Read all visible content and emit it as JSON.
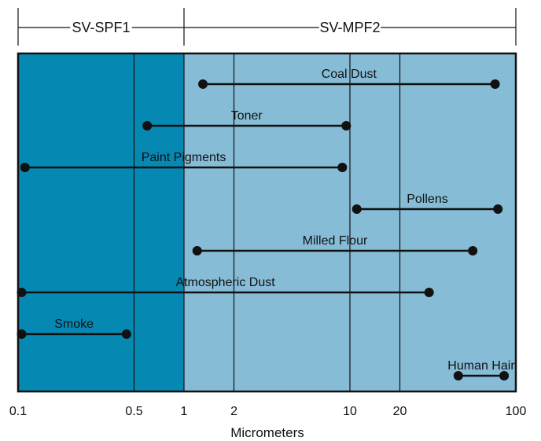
{
  "chart_data": {
    "type": "range",
    "xlabel": "Micrometers",
    "x_scale": "log",
    "xlim": [
      0.1,
      100
    ],
    "x_ticks": [
      {
        "value": 0.1,
        "label": "0.1"
      },
      {
        "value": 0.5,
        "label": "0.5"
      },
      {
        "value": 1,
        "label": "1"
      },
      {
        "value": 2,
        "label": "2"
      },
      {
        "value": 10,
        "label": "10"
      },
      {
        "value": 20,
        "label": "20"
      },
      {
        "value": 100,
        "label": "100"
      }
    ],
    "gridlines": [
      0.5,
      1,
      2,
      10,
      20
    ],
    "regions": [
      {
        "from": 0.1,
        "to": 1,
        "color": "#0589b3"
      },
      {
        "from": 1,
        "to": 100,
        "color": "#86bcd6"
      }
    ],
    "filter_ranges": [
      {
        "name": "SV-SPF1",
        "from": 0.1,
        "to": 1
      },
      {
        "name": "SV-MPF2",
        "from": 1,
        "to": 100
      }
    ],
    "series": [
      {
        "name": "Coal Dust",
        "min": 1.3,
        "max": 75
      },
      {
        "name": "Toner",
        "min": 0.6,
        "max": 9.5
      },
      {
        "name": "Paint Pigments",
        "min": 0.11,
        "max": 9.0
      },
      {
        "name": "Pollens",
        "min": 11,
        "max": 78
      },
      {
        "name": "Milled Flour",
        "min": 1.2,
        "max": 55
      },
      {
        "name": "Atmospheric Dust",
        "min": 0.105,
        "max": 30
      },
      {
        "name": "Smoke",
        "min": 0.105,
        "max": 0.45
      },
      {
        "name": "Human Hair",
        "min": 45,
        "max": 85
      }
    ],
    "colors": {
      "line": "#111111",
      "border": "#111111"
    }
  }
}
